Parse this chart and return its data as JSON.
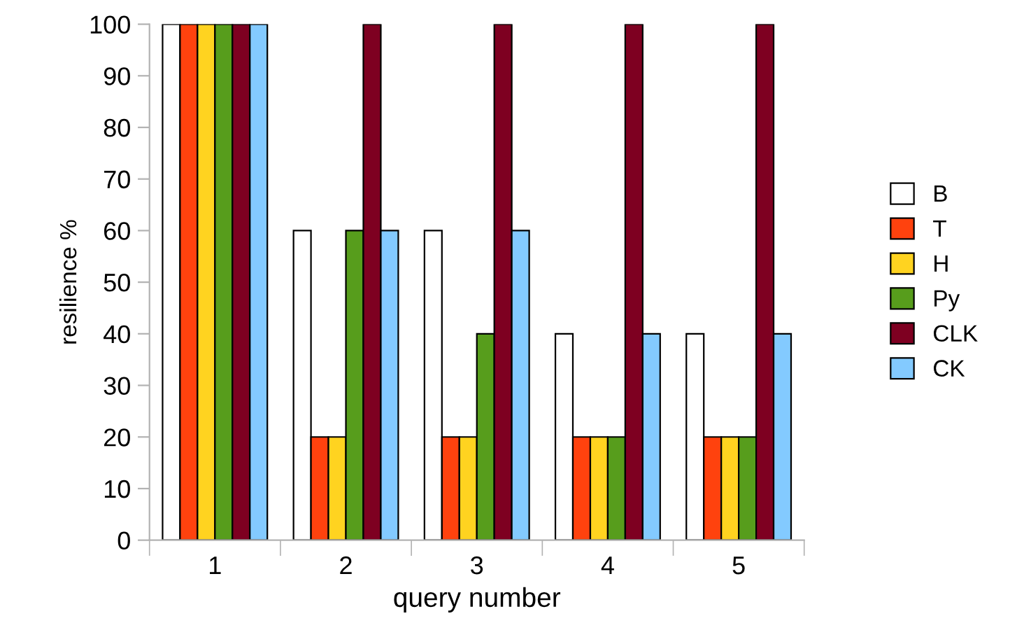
{
  "chart_data": {
    "type": "bar",
    "xlabel": "query number",
    "ylabel": "resilience %",
    "categories": [
      "1",
      "2",
      "3",
      "4",
      "5"
    ],
    "series": [
      {
        "name": "B",
        "color": "#ffffff",
        "values": [
          100,
          60,
          60,
          40,
          40
        ]
      },
      {
        "name": "T",
        "color": "#ff420e",
        "values": [
          100,
          20,
          20,
          20,
          20
        ]
      },
      {
        "name": "H",
        "color": "#ffd320",
        "values": [
          100,
          20,
          20,
          20,
          20
        ]
      },
      {
        "name": "Py",
        "color": "#579d1c",
        "values": [
          100,
          60,
          40,
          20,
          20
        ]
      },
      {
        "name": "CLK",
        "color": "#7e0021",
        "values": [
          100,
          100,
          100,
          100,
          100
        ]
      },
      {
        "name": "CK",
        "color": "#83caff",
        "values": [
          100,
          60,
          60,
          40,
          40
        ]
      }
    ],
    "ylim": [
      0,
      100
    ],
    "yticks": [
      0,
      10,
      20,
      30,
      40,
      50,
      60,
      70,
      80,
      90,
      100
    ],
    "grid": false,
    "legend": "right"
  }
}
